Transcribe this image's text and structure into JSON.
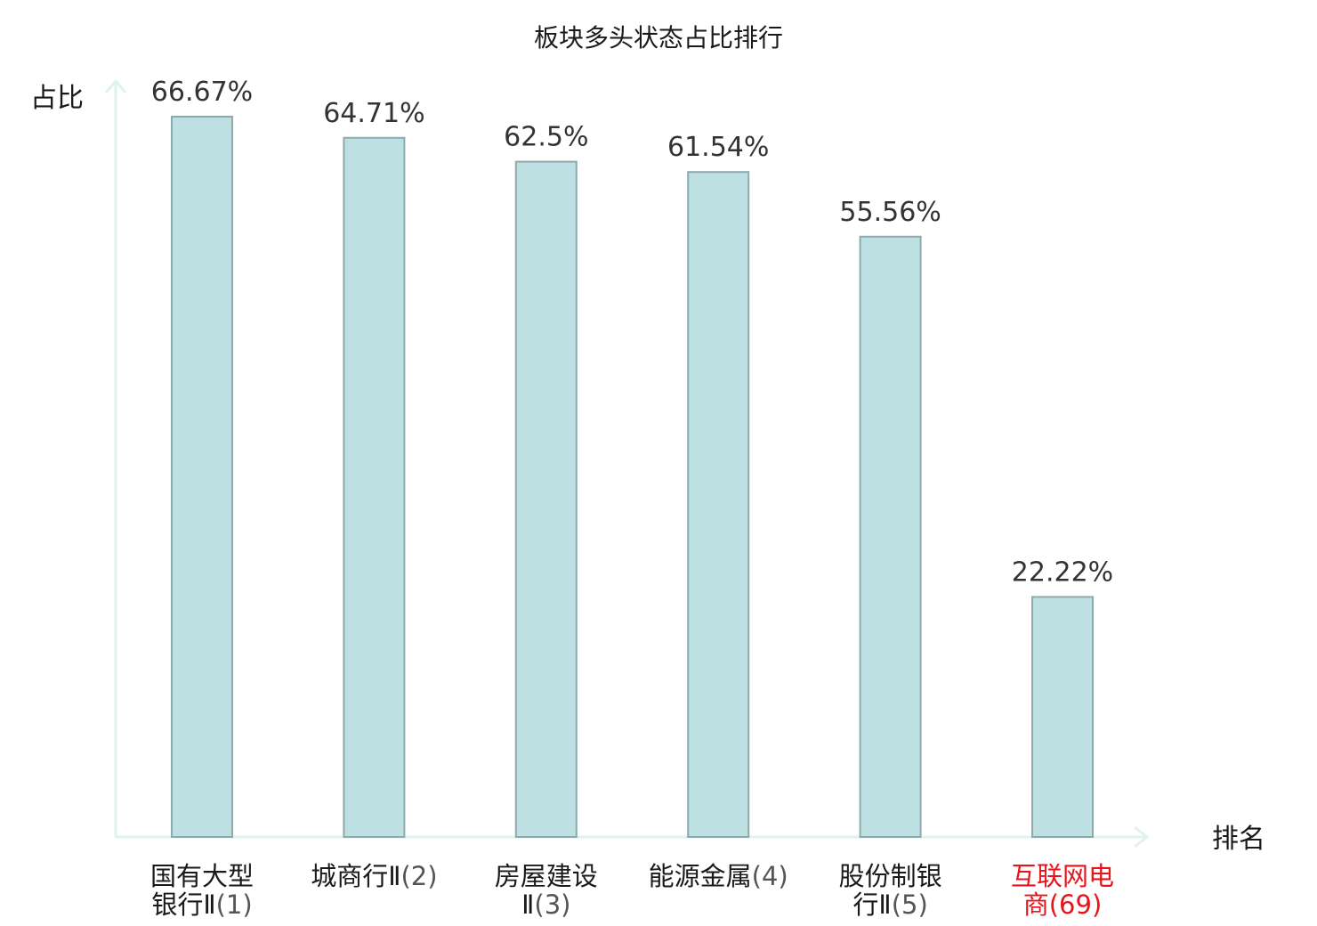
{
  "chart_data": {
    "type": "bar",
    "title": "板块多头状态占比排行",
    "ylabel": "占比",
    "xlabel": "排名",
    "ylim": [
      0,
      70
    ],
    "grid": false,
    "legend": "none",
    "categories": [
      {
        "name_lines": [
          "国有大型",
          "银行Ⅱ"
        ],
        "rank": "(1)"
      },
      {
        "name_lines": [
          "城商行Ⅱ"
        ],
        "rank": "(2)"
      },
      {
        "name_lines": [
          "房屋建设",
          "Ⅱ"
        ],
        "rank": "(3)"
      },
      {
        "name_lines": [
          "能源金属"
        ],
        "rank": "(4)"
      },
      {
        "name_lines": [
          "股份制银",
          "行Ⅱ"
        ],
        "rank": "(5)"
      },
      {
        "name_lines": [
          "互联网电",
          "商"
        ],
        "rank": "(69)",
        "highlight": true
      }
    ],
    "values": [
      66.67,
      64.71,
      62.5,
      61.54,
      55.56,
      22.22
    ],
    "value_labels": [
      "66.67%",
      "64.71%",
      "62.5%",
      "61.54%",
      "55.56%",
      "22.22%"
    ],
    "colors": {
      "bar_fill": "#bde0e3",
      "bar_stroke": "#8faaad",
      "axis": "#e0f2f0",
      "highlight_text": "#e8141b",
      "text": "#1a1a1a",
      "rank_text": "#555555"
    }
  }
}
